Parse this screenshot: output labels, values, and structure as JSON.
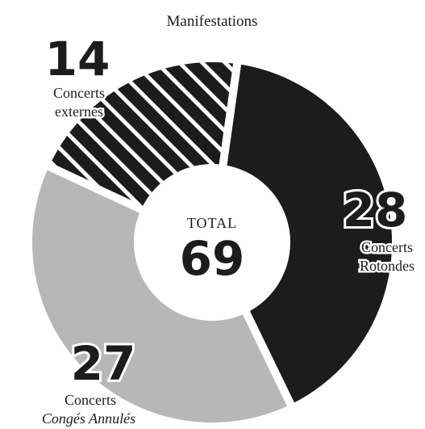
{
  "chart_data": {
    "type": "pie",
    "variant": "donut",
    "title": "Manifestations",
    "center_label": "TOTAL",
    "total": 69,
    "slices": [
      {
        "value": 28,
        "label_lines": [
          "Concerts",
          "Rotondes"
        ],
        "italic_line": "",
        "color": "#1c1c1c",
        "pattern": "solid"
      },
      {
        "value": 27,
        "label_lines": [
          "Concerts"
        ],
        "italic_line": "Congés Annulés",
        "color": "#b7b7b7",
        "pattern": "solid"
      },
      {
        "value": 14,
        "label_lines": [
          "Concerts",
          "externes"
        ],
        "italic_line": "",
        "color": "#1c1c1c",
        "pattern": "hatched"
      }
    ],
    "legend": "none",
    "grid": false
  }
}
